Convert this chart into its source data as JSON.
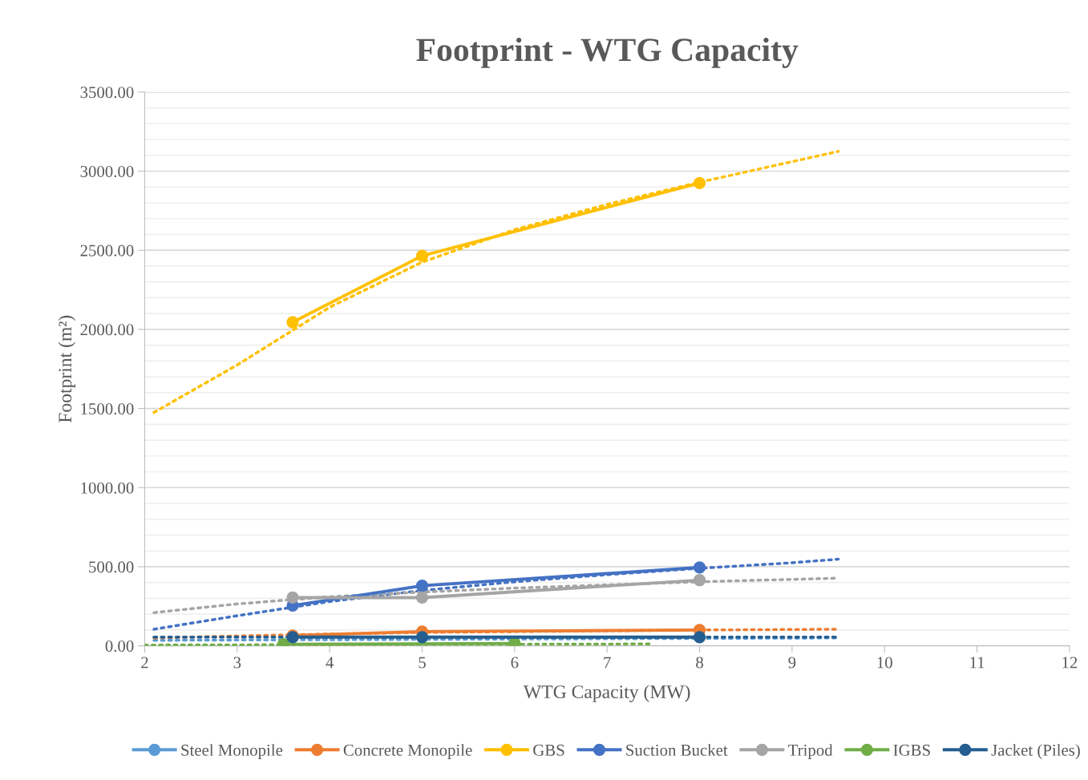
{
  "chart_data": {
    "type": "line",
    "title": "Footprint - WTG Capacity",
    "xlabel": "WTG Capacity (MW)",
    "ylabel": "Footprint (m²)",
    "xlim": [
      2,
      12
    ],
    "xticks": [
      2,
      3,
      4,
      5,
      6,
      7,
      8,
      9,
      10,
      11,
      12
    ],
    "ylim": [
      0,
      3500
    ],
    "yticks": [
      {
        "value": 0,
        "label": "0.00"
      },
      {
        "value": 100,
        "label": null
      },
      {
        "value": 200,
        "label": null
      },
      {
        "value": 300,
        "label": null
      },
      {
        "value": 400,
        "label": null
      },
      {
        "value": 500,
        "label": "500.00"
      },
      {
        "value": 600,
        "label": null
      },
      {
        "value": 700,
        "label": null
      },
      {
        "value": 800,
        "label": null
      },
      {
        "value": 900,
        "label": null
      },
      {
        "value": 1000,
        "label": "1000.00"
      },
      {
        "value": 1100,
        "label": null
      },
      {
        "value": 1200,
        "label": null
      },
      {
        "value": 1300,
        "label": null
      },
      {
        "value": 1400,
        "label": null
      },
      {
        "value": 1500,
        "label": "1500.00"
      },
      {
        "value": 1600,
        "label": null
      },
      {
        "value": 1700,
        "label": null
      },
      {
        "value": 1800,
        "label": null
      },
      {
        "value": 1900,
        "label": null
      },
      {
        "value": 2000,
        "label": "2000.00"
      },
      {
        "value": 2100,
        "label": null
      },
      {
        "value": 2200,
        "label": null
      },
      {
        "value": 2300,
        "label": null
      },
      {
        "value": 2400,
        "label": null
      },
      {
        "value": 2500,
        "label": "2500.00"
      },
      {
        "value": 2600,
        "label": null
      },
      {
        "value": 2700,
        "label": null
      },
      {
        "value": 2800,
        "label": null
      },
      {
        "value": 2900,
        "label": null
      },
      {
        "value": 3000,
        "label": "3000.00"
      },
      {
        "value": 3100,
        "label": null
      },
      {
        "value": 3200,
        "label": null
      },
      {
        "value": 3300,
        "label": null
      },
      {
        "value": 3400,
        "label": null
      },
      {
        "value": 3500,
        "label": "3500.00"
      }
    ],
    "grid": "y",
    "legend": "bottom",
    "marker": "circle",
    "line_style": "solid",
    "series": [
      {
        "name": "Steel Monopile",
        "color": "#5b9bd5"
      },
      {
        "name": "Concrete Monopile",
        "color": "#ed7d31",
        "x": [
          3.6,
          5,
          8
        ],
        "values": [
          65,
          90,
          100
        ]
      },
      {
        "name": "GBS",
        "color": "#ffc000",
        "x": [
          3.6,
          5,
          8
        ],
        "values": [
          2045,
          2465,
          2925
        ]
      },
      {
        "name": "Suction Bucket",
        "color": "#4472c4",
        "x": [
          3.6,
          5,
          8
        ],
        "values": [
          255,
          380,
          495
        ]
      },
      {
        "name": "Tripod",
        "color": "#a5a5a5",
        "x": [
          3.6,
          5,
          8
        ],
        "values": [
          305,
          305,
          415
        ]
      },
      {
        "name": "IGBS",
        "color": "#70ad47",
        "x": [
          3.5,
          6
        ],
        "values": [
          10,
          15
        ]
      },
      {
        "name": "Jacket (Piles)",
        "color": "#255e91",
        "x": [
          3.6,
          5,
          8
        ],
        "values": [
          55,
          55,
          55
        ]
      },
      {
        "color": "#5b9bd5",
        "marker": "none",
        "line_style": "dotted",
        "x": [
          2.1,
          9.5
        ],
        "values": [
          35,
          50
        ]
      },
      {
        "color": "#ed7d31",
        "marker": "none",
        "line_style": "dotted",
        "x": [
          2.1,
          3.6,
          5,
          8,
          9.5
        ],
        "values": [
          50,
          70,
          85,
          100,
          105
        ]
      },
      {
        "color": "#ffc000",
        "marker": "none",
        "line_style": "dotted",
        "x": [
          2.1,
          3,
          4,
          5,
          6,
          7,
          8,
          9,
          9.5
        ],
        "values": [
          1475,
          1775,
          2140,
          2425,
          2630,
          2790,
          2930,
          3060,
          3125
        ]
      },
      {
        "color": "#4472c4",
        "marker": "none",
        "line_style": "dotted",
        "x": [
          2.1,
          3,
          4,
          5,
          6,
          7,
          8,
          9,
          9.5
        ],
        "values": [
          105,
          190,
          280,
          350,
          405,
          450,
          490,
          525,
          548
        ]
      },
      {
        "color": "#a5a5a5",
        "marker": "none",
        "line_style": "dotted",
        "x": [
          2.1,
          3,
          4,
          5,
          6,
          7,
          8,
          9,
          9.5
        ],
        "values": [
          210,
          265,
          310,
          340,
          365,
          385,
          405,
          420,
          428
        ]
      },
      {
        "color": "#70ad47",
        "marker": "none",
        "line_style": "dotted",
        "x": [
          2,
          7.5
        ],
        "values": [
          5,
          12
        ]
      },
      {
        "color": "#255e91",
        "marker": "none",
        "line_style": "dotted",
        "x": [
          2.1,
          9.5
        ],
        "values": [
          55,
          55
        ]
      }
    ]
  }
}
